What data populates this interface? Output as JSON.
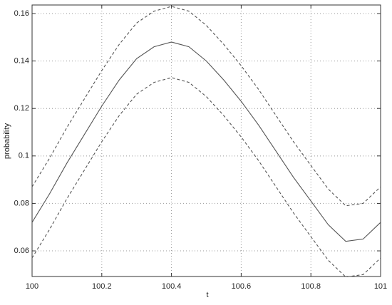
{
  "chart_data": {
    "type": "line",
    "x_label": "t",
    "y_label": "probability",
    "x": [
      100,
      100.05,
      100.1,
      100.15,
      100.2,
      100.25,
      100.3,
      100.35,
      100.4,
      100.45,
      100.5,
      100.55,
      100.6,
      100.65,
      100.7,
      100.75,
      100.8,
      100.85,
      100.9,
      100.95,
      101
    ],
    "series": [
      {
        "color": "#555555",
        "style": "dashed",
        "values": [
          0.087,
          0.099,
          0.112,
          0.124,
          0.136,
          0.147,
          0.156,
          0.161,
          0.163,
          0.161,
          0.155,
          0.147,
          0.138,
          0.128,
          0.117,
          0.106,
          0.096,
          0.086,
          0.079,
          0.08,
          0.087
        ]
      },
      {
        "color": "#555555",
        "style": "solid",
        "values": [
          0.072,
          0.084,
          0.097,
          0.109,
          0.121,
          0.132,
          0.141,
          0.146,
          0.148,
          0.146,
          0.14,
          0.132,
          0.123,
          0.113,
          0.102,
          0.091,
          0.081,
          0.071,
          0.064,
          0.065,
          0.072
        ]
      },
      {
        "color": "#555555",
        "style": "dashed",
        "values": [
          0.057,
          0.069,
          0.082,
          0.094,
          0.106,
          0.117,
          0.126,
          0.131,
          0.133,
          0.131,
          0.125,
          0.117,
          0.108,
          0.098,
          0.087,
          0.076,
          0.066,
          0.056,
          0.049,
          0.05,
          0.057
        ]
      }
    ],
    "xlim": [
      100,
      101
    ],
    "xticks": [
      100,
      100.2,
      100.4,
      100.6,
      100.8,
      101
    ],
    "ylim": [
      0.0492,
      0.1636
    ],
    "yticks": [
      0.06,
      0.08,
      0.1,
      0.12,
      0.14,
      0.16
    ],
    "grid": true
  }
}
